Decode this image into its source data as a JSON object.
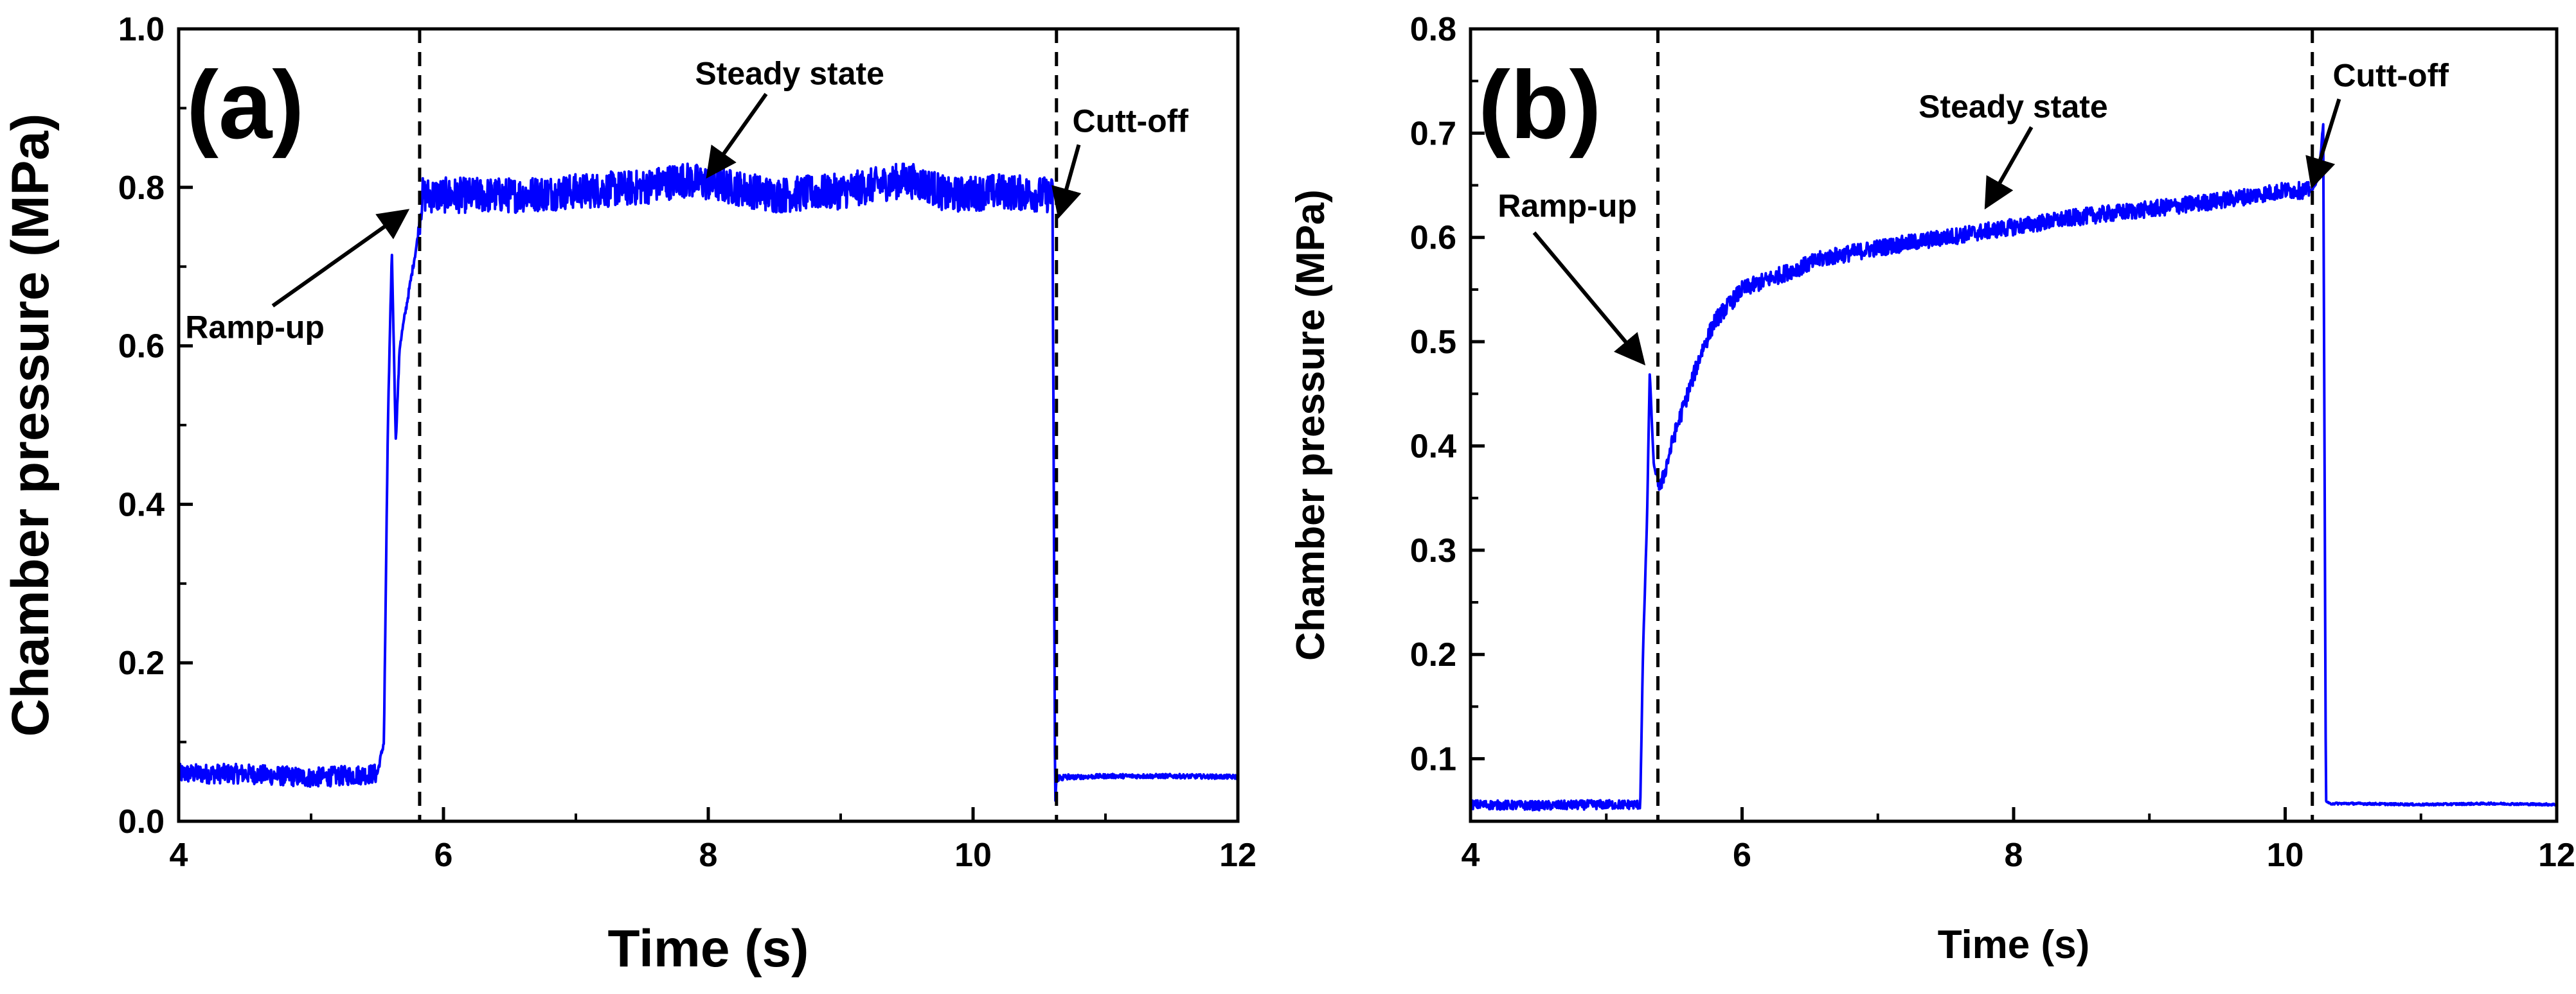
{
  "chart_data": [
    {
      "type": "line",
      "panel_label": "(a)",
      "xlabel": "Time (s)",
      "ylabel": "Chamber pressure (MPa)",
      "xlim": [
        4,
        12
      ],
      "ylim": [
        0,
        1.0
      ],
      "x_ticks": [
        4,
        6,
        8,
        10,
        12
      ],
      "x_tick_labels": [
        "4",
        "6",
        "8",
        "10",
        "12"
      ],
      "y_ticks": [
        0.0,
        0.2,
        0.4,
        0.6,
        0.8,
        1.0
      ],
      "y_tick_labels": [
        "0.0",
        "0.2",
        "0.4",
        "0.6",
        "0.8",
        "1.0"
      ],
      "line_color": "#0000ff",
      "vlines": [
        5.82,
        10.63
      ],
      "series": [
        {
          "name": "Chamber pressure",
          "x": [
            4.0,
            4.5,
            5.0,
            5.5,
            5.55,
            5.58,
            5.61,
            5.64,
            5.67,
            5.7,
            5.75,
            5.8,
            5.84,
            6.0,
            6.5,
            7.0,
            7.5,
            7.8,
            8.0,
            8.2,
            8.5,
            9.0,
            9.5,
            9.7,
            9.8,
            10.2,
            10.6,
            10.62,
            10.63,
            11.0,
            11.5,
            12.0
          ],
          "y": [
            0.06,
            0.06,
            0.055,
            0.06,
            0.1,
            0.5,
            0.72,
            0.48,
            0.6,
            0.63,
            0.68,
            0.73,
            0.79,
            0.79,
            0.79,
            0.795,
            0.8,
            0.81,
            0.805,
            0.8,
            0.79,
            0.795,
            0.81,
            0.8,
            0.79,
            0.795,
            0.79,
            0.02,
            0.055,
            0.057,
            0.057,
            0.056
          ],
          "noise": 0.045
        }
      ],
      "annotations": [
        {
          "text": "Steady state",
          "x": 7.9,
          "y": 0.93,
          "arrow_to": [
            8.0,
            0.815
          ]
        },
        {
          "text": "Ramp-up",
          "x": 4.05,
          "y": 0.61,
          "arrow_to": [
            5.72,
            0.77
          ]
        },
        {
          "text": "Cutt-off",
          "x": 10.75,
          "y": 0.87,
          "arrow_to": [
            10.65,
            0.765
          ]
        }
      ]
    },
    {
      "type": "line",
      "panel_label": "(b)",
      "xlabel": "Time (s)",
      "ylabel": "Chamber pressure (MPa)",
      "xlim": [
        4,
        12
      ],
      "ylim": [
        0.04,
        0.8
      ],
      "x_ticks": [
        4,
        6,
        8,
        10,
        12
      ],
      "x_tick_labels": [
        "4",
        "6",
        "8",
        "10",
        "12"
      ],
      "y_ticks": [
        0.1,
        0.2,
        0.3,
        0.4,
        0.5,
        0.6,
        0.7,
        0.8
      ],
      "y_tick_labels": [
        "0.1",
        "0.2",
        "0.3",
        "0.4",
        "0.5",
        "0.6",
        "0.7",
        "0.8"
      ],
      "line_color": "#0000ff",
      "vlines": [
        5.38,
        10.2
      ],
      "series": [
        {
          "name": "Chamber pressure",
          "x": [
            4.0,
            4.5,
            5.0,
            5.25,
            5.27,
            5.3,
            5.32,
            5.35,
            5.4,
            5.5,
            5.6,
            5.7,
            5.8,
            6.0,
            6.3,
            6.6,
            7.0,
            7.5,
            8.0,
            8.5,
            9.0,
            9.5,
            10.0,
            10.2,
            10.25,
            10.28,
            10.3,
            10.32,
            10.5,
            11.0,
            11.5,
            12.0
          ],
          "y": [
            0.056,
            0.055,
            0.056,
            0.056,
            0.2,
            0.33,
            0.47,
            0.38,
            0.36,
            0.41,
            0.45,
            0.49,
            0.52,
            0.55,
            0.565,
            0.58,
            0.59,
            0.6,
            0.61,
            0.62,
            0.627,
            0.635,
            0.645,
            0.645,
            0.66,
            0.71,
            0.06,
            0.057,
            0.057,
            0.056,
            0.057,
            0.056
          ],
          "noise": 0.016
        }
      ],
      "annotations": [
        {
          "text": "Steady state",
          "x": 7.3,
          "y": 0.715,
          "arrow_to": [
            7.8,
            0.63
          ]
        },
        {
          "text": "Ramp-up",
          "x": 4.2,
          "y": 0.62,
          "arrow_to": [
            5.27,
            0.48
          ]
        },
        {
          "text": "Cutt-off",
          "x": 10.35,
          "y": 0.745,
          "arrow_to": [
            10.2,
            0.65
          ]
        }
      ]
    }
  ]
}
